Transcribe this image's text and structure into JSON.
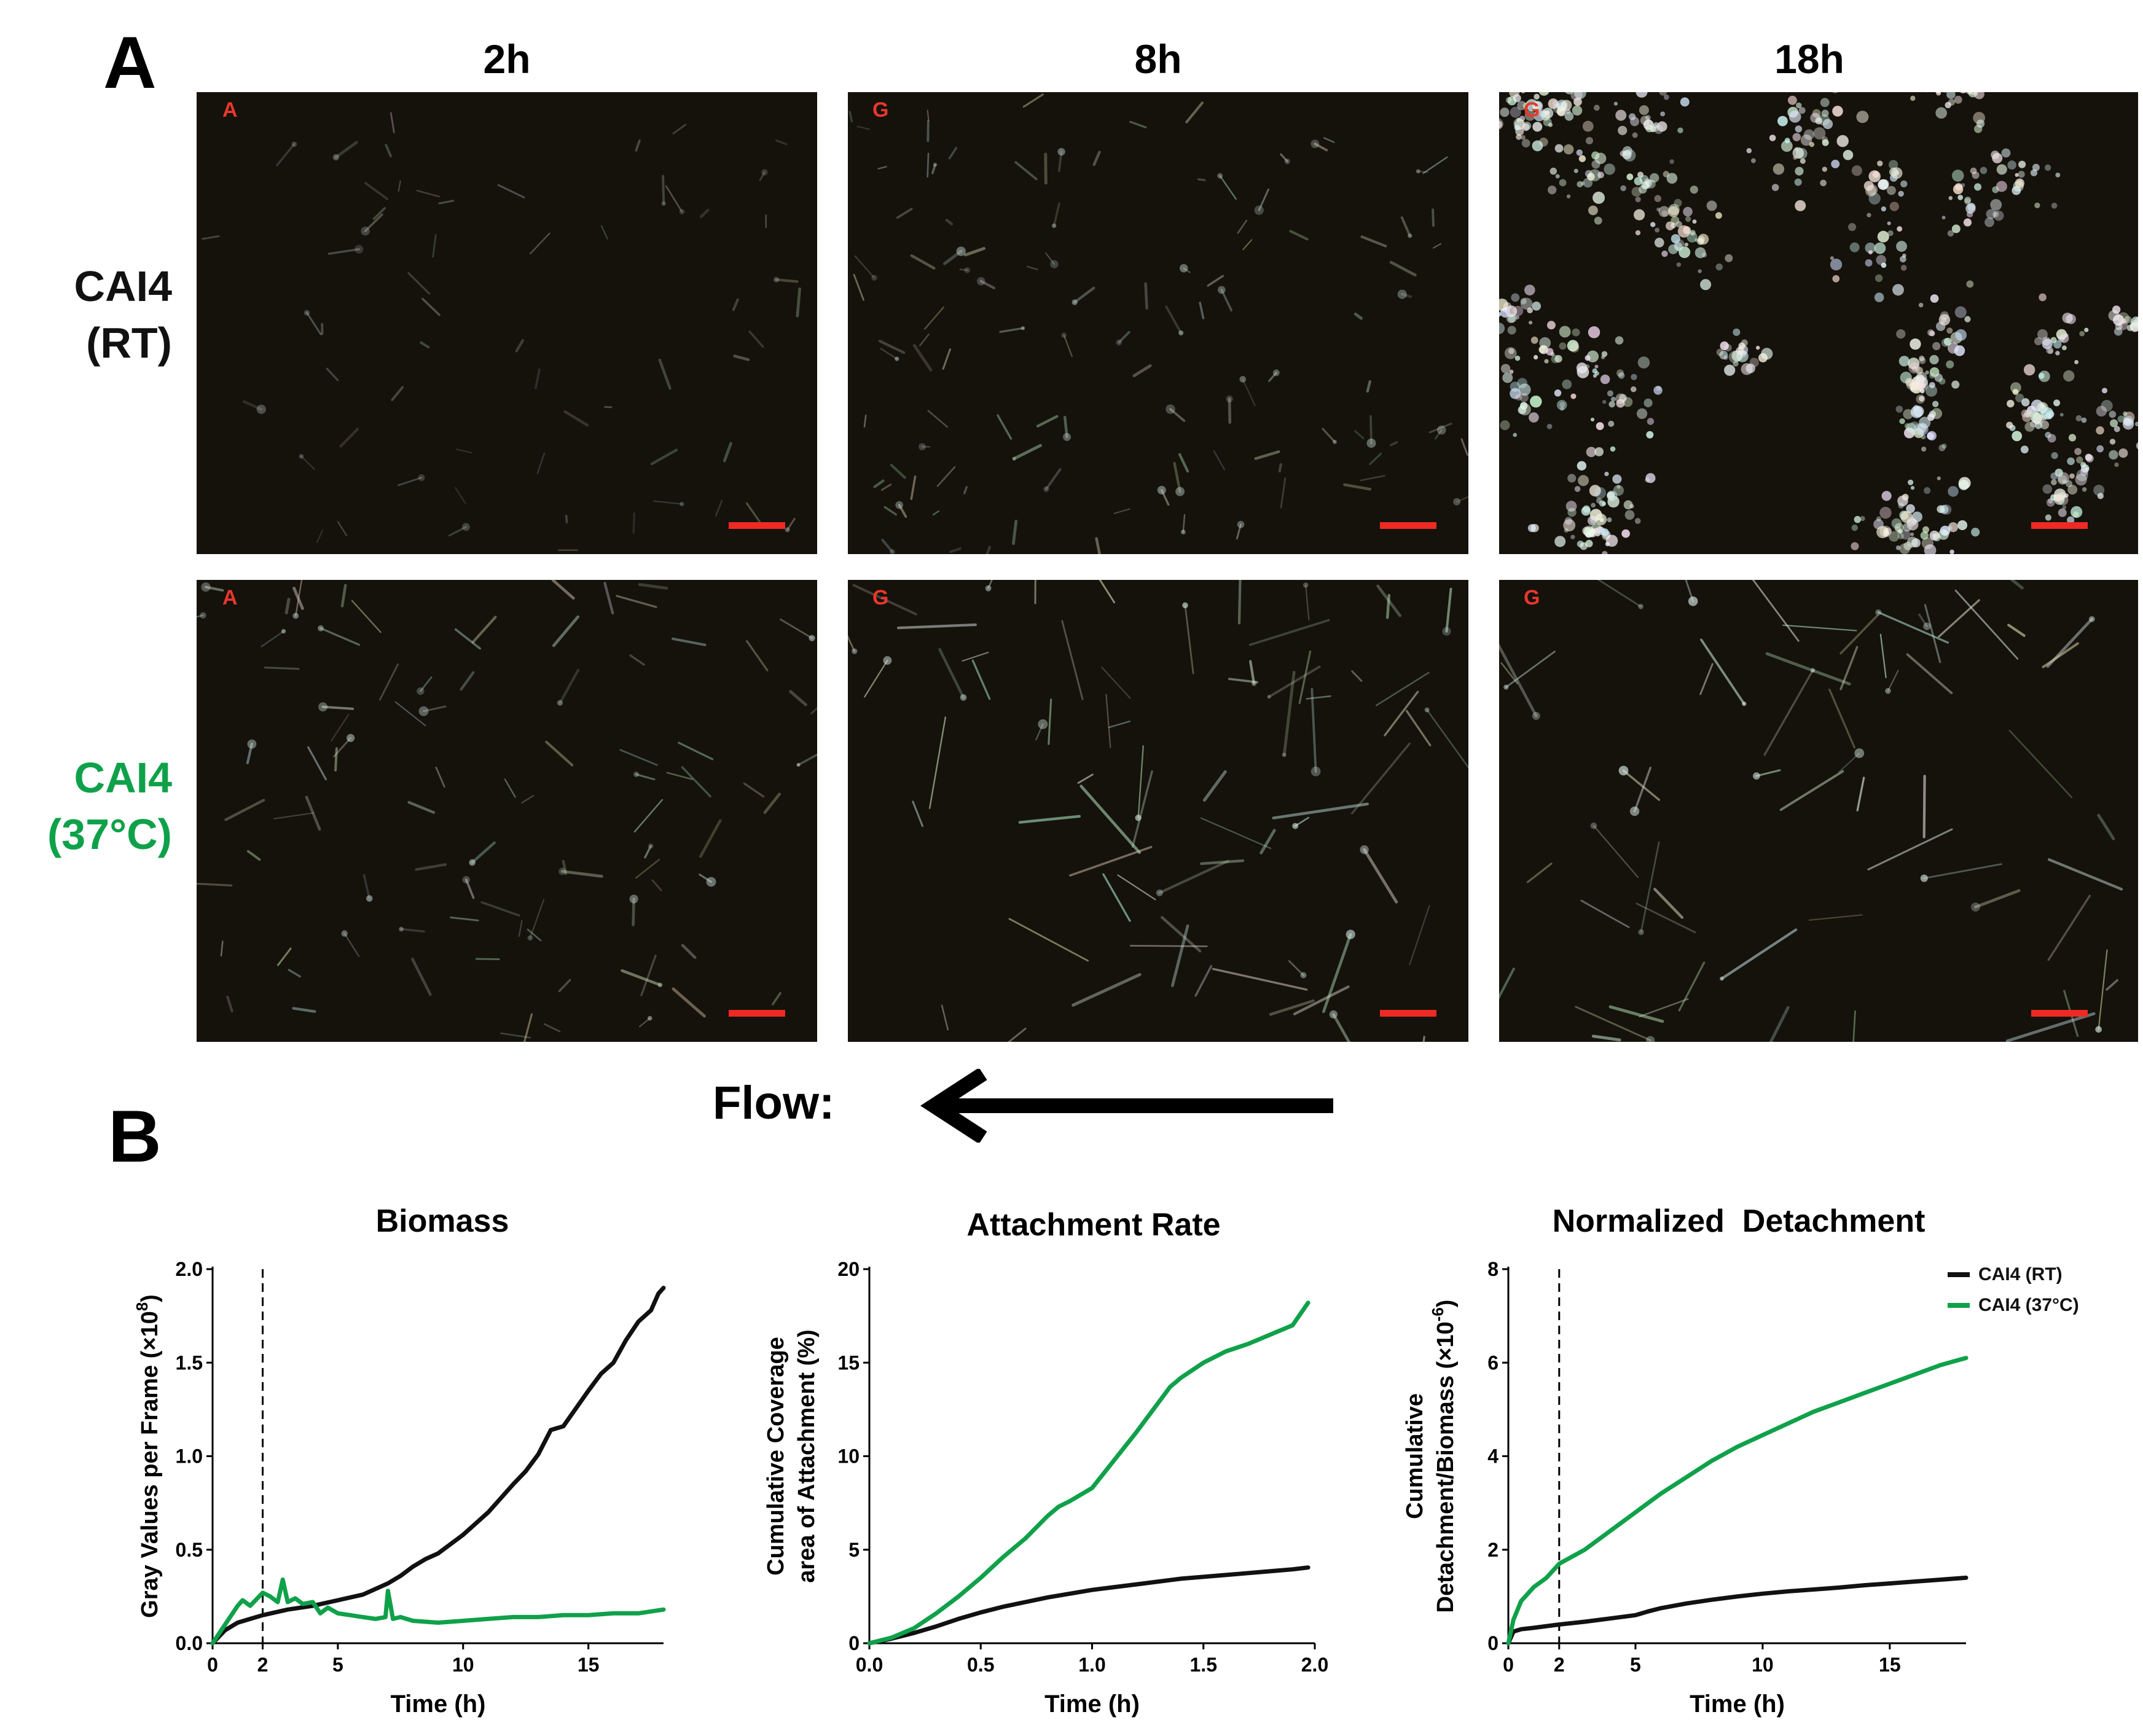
{
  "panel_a": {
    "letter": "A",
    "columns": [
      "2h",
      "8h",
      "18h"
    ],
    "rows": [
      {
        "line1": "CAI4",
        "line2": "(RT)",
        "color": "#111111"
      },
      {
        "line1": "CAI4",
        "line2": "(37°C)",
        "color": "#0fa14a"
      }
    ],
    "image_tags": [
      [
        "A",
        "G",
        "G"
      ],
      [
        "A",
        "G",
        "G"
      ]
    ],
    "flow_label": "Flow:"
  },
  "panel_b": {
    "letter": "B"
  },
  "legend": {
    "entries": [
      {
        "name": "CAI4 (RT)",
        "color": "#111111"
      },
      {
        "name": "CAI4 (37°C)",
        "color": "#0fa14a"
      }
    ]
  },
  "chart_data": [
    {
      "type": "line",
      "title": "Biomass",
      "xlabel": "Time (h)",
      "ylabel": "Gray Values per Frame (×10",
      "ylabel_sup": "8",
      "ylabel_end": ")",
      "xlim": [
        0,
        18
      ],
      "ylim": [
        0,
        2.0
      ],
      "xticks": [
        0,
        2,
        5,
        10,
        15
      ],
      "xtick_labels": [
        "0",
        "2",
        "5",
        "10",
        "15"
      ],
      "yticks": [
        0,
        0.5,
        1.0,
        1.5,
        2.0
      ],
      "ytick_labels": [
        "0.0",
        "0.5",
        "1.0",
        "1.5",
        "2.0"
      ],
      "vline": 2,
      "series": [
        {
          "name": "CAI4 (RT)",
          "color": "#111111",
          "x": [
            0,
            0.5,
            1,
            1.5,
            2,
            3,
            4,
            5,
            6,
            7,
            7.5,
            8,
            8.5,
            9,
            10,
            11,
            12,
            12.5,
            13,
            13.5,
            14,
            15,
            15.5,
            16,
            16.5,
            17,
            17.5,
            17.8,
            18
          ],
          "y": [
            0,
            0.07,
            0.11,
            0.13,
            0.15,
            0.18,
            0.2,
            0.23,
            0.26,
            0.32,
            0.36,
            0.41,
            0.45,
            0.48,
            0.58,
            0.7,
            0.85,
            0.92,
            1.01,
            1.14,
            1.16,
            1.35,
            1.44,
            1.5,
            1.62,
            1.72,
            1.78,
            1.87,
            1.9
          ]
        },
        {
          "name": "CAI4 (37°C)",
          "color": "#0fa14a",
          "x": [
            0,
            0.5,
            1,
            1.2,
            1.5,
            2,
            2.3,
            2.6,
            2.8,
            3,
            3.3,
            3.6,
            4,
            4.3,
            4.6,
            5,
            5.5,
            6,
            6.5,
            6.9,
            7,
            7.2,
            7.5,
            8,
            9,
            10,
            11,
            12,
            13,
            14,
            15,
            16,
            17,
            18
          ],
          "y": [
            0,
            0.1,
            0.2,
            0.23,
            0.2,
            0.27,
            0.25,
            0.22,
            0.34,
            0.22,
            0.24,
            0.21,
            0.22,
            0.16,
            0.19,
            0.16,
            0.15,
            0.14,
            0.13,
            0.14,
            0.28,
            0.13,
            0.14,
            0.12,
            0.11,
            0.12,
            0.13,
            0.14,
            0.14,
            0.15,
            0.15,
            0.16,
            0.16,
            0.18
          ]
        }
      ]
    },
    {
      "type": "line",
      "title": "Attachment Rate",
      "xlabel": "Time (h)",
      "ylabel": "Cumulative Coverage",
      "ylabel2": "area of Attachment (%)",
      "xlim": [
        0,
        2.0
      ],
      "ylim": [
        0,
        20
      ],
      "xticks": [
        0,
        0.5,
        1.0,
        1.5,
        2.0
      ],
      "xtick_labels": [
        "0.0",
        "0.5",
        "1.0",
        "1.5",
        "2.0"
      ],
      "yticks": [
        0,
        5,
        10,
        15,
        20
      ],
      "ytick_labels": [
        "0",
        "5",
        "10",
        "15",
        "20"
      ],
      "series": [
        {
          "name": "CAI4 (RT)",
          "color": "#111111",
          "x": [
            0,
            0.1,
            0.2,
            0.3,
            0.4,
            0.5,
            0.6,
            0.7,
            0.8,
            0.9,
            1.0,
            1.1,
            1.2,
            1.3,
            1.4,
            1.5,
            1.6,
            1.7,
            1.8,
            1.9,
            1.97
          ],
          "y": [
            0,
            0.25,
            0.55,
            0.9,
            1.3,
            1.65,
            1.95,
            2.2,
            2.45,
            2.65,
            2.85,
            3.0,
            3.15,
            3.3,
            3.45,
            3.55,
            3.65,
            3.75,
            3.85,
            3.95,
            4.05
          ]
        },
        {
          "name": "CAI4 (37°C)",
          "color": "#0fa14a",
          "x": [
            0,
            0.1,
            0.2,
            0.3,
            0.4,
            0.5,
            0.6,
            0.7,
            0.8,
            0.85,
            0.9,
            1.0,
            1.1,
            1.2,
            1.3,
            1.35,
            1.4,
            1.5,
            1.6,
            1.7,
            1.8,
            1.9,
            1.97
          ],
          "y": [
            0,
            0.3,
            0.8,
            1.6,
            2.5,
            3.5,
            4.6,
            5.6,
            6.8,
            7.3,
            7.6,
            8.3,
            9.8,
            11.3,
            12.9,
            13.7,
            14.2,
            15.0,
            15.6,
            16.0,
            16.5,
            17.0,
            18.2
          ]
        }
      ]
    },
    {
      "type": "line",
      "title": "Normalized  Detachment",
      "xlabel": "Time (h)",
      "ylabel": "Cumulative",
      "ylabel2": "Detachment/Biomass (×10",
      "ylabel2_sup": "-6",
      "ylabel2_end": ")",
      "xlim": [
        0,
        18
      ],
      "ylim": [
        0,
        8
      ],
      "xticks": [
        0,
        2,
        5,
        10,
        15
      ],
      "xtick_labels": [
        "0",
        "2",
        "5",
        "10",
        "15"
      ],
      "yticks": [
        0,
        2,
        4,
        6,
        8
      ],
      "ytick_labels": [
        "0",
        "2",
        "4",
        "6",
        "8"
      ],
      "vline": 2,
      "series": [
        {
          "name": "CAI4 (RT)",
          "color": "#111111",
          "x": [
            0,
            0.2,
            0.5,
            1,
            2,
            3,
            4,
            5,
            5.5,
            6,
            7,
            8,
            9,
            10,
            11,
            12,
            13,
            14,
            15,
            16,
            17,
            18
          ],
          "y": [
            0,
            0.25,
            0.3,
            0.33,
            0.4,
            0.46,
            0.53,
            0.6,
            0.68,
            0.75,
            0.85,
            0.93,
            1.0,
            1.06,
            1.11,
            1.15,
            1.19,
            1.24,
            1.28,
            1.32,
            1.36,
            1.4
          ]
        },
        {
          "name": "CAI4 (37°C)",
          "color": "#0fa14a",
          "x": [
            0,
            0.2,
            0.5,
            1,
            1.5,
            2,
            3,
            4,
            5,
            6,
            7,
            8,
            9,
            10,
            11,
            12,
            13,
            14,
            15,
            16,
            17,
            18
          ],
          "y": [
            0,
            0.5,
            0.9,
            1.2,
            1.4,
            1.7,
            2.0,
            2.4,
            2.8,
            3.2,
            3.55,
            3.9,
            4.2,
            4.45,
            4.7,
            4.95,
            5.15,
            5.35,
            5.55,
            5.75,
            5.95,
            6.1
          ]
        }
      ]
    }
  ]
}
